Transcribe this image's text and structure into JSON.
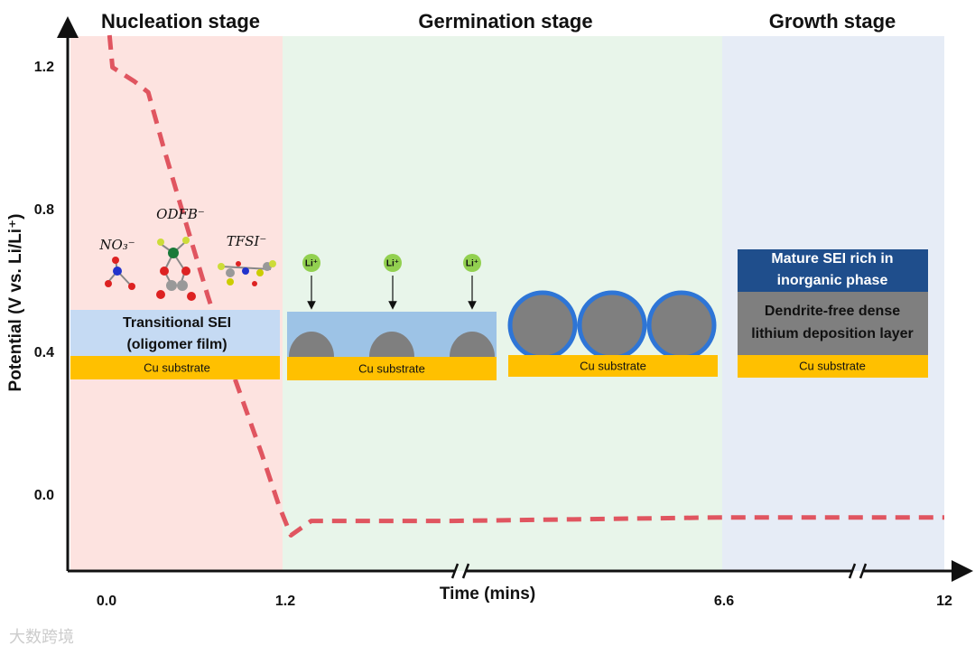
{
  "chart_data": {
    "type": "line",
    "stages": [
      "Nucleation stage",
      "Germination stage",
      "Growth stage"
    ],
    "xlabel": "Time (mins)",
    "ylabel": "Potential (V vs. Li/Li⁺)",
    "x": [
      0.02,
      0.04,
      0.19,
      0.28,
      0.38,
      0.5,
      0.68,
      0.86,
      1.04,
      1.16,
      1.27,
      1.52,
      3.24,
      6.58,
      12
    ],
    "values": [
      1.29,
      1.2,
      1.16,
      1.13,
      0.98,
      0.81,
      0.56,
      0.33,
      0.12,
      -0.03,
      -0.11,
      -0.07,
      -0.07,
      -0.06,
      -0.06
    ],
    "color": "#e05560",
    "xticks": [
      {
        "value": 0,
        "label": "0.0"
      },
      1.2,
      6.6,
      12
    ],
    "ylim": [
      -0.21,
      1.3
    ],
    "yticks": [
      {
        "value": 0,
        "label": "0.0"
      },
      0.4,
      0.8,
      1.2
    ]
  },
  "diagrams": {
    "ions": [
      "NO₃⁻",
      "ODFB⁻",
      "TFSI⁻"
    ],
    "panels": [
      {
        "sei": [
          "Transitional SEI",
          "(oligomer film)"
        ],
        "substrate": "Cu substrate"
      },
      {
        "ions": [
          "Li⁺",
          "Li⁺",
          "Li⁺"
        ],
        "substrate": "Cu substrate"
      },
      {
        "substrate": "Cu substrate"
      },
      {
        "sei": [
          "Mature SEI rich in",
          "inorganic phase"
        ],
        "layer": [
          "Dendrite-free dense",
          "lithium deposition layer"
        ],
        "substrate": "Cu substrate"
      }
    ]
  },
  "watermark": "大数跨境"
}
